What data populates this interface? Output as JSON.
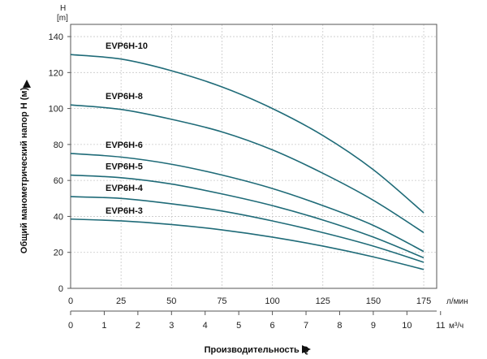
{
  "chart_data": {
    "type": "line",
    "y_axis": {
      "symbol": "H",
      "unit": "[m]",
      "label": "Общий манометрический напор H (м)",
      "ticks": [
        "0",
        "20",
        "40",
        "60",
        "80",
        "100",
        "120",
        "140"
      ],
      "ylim": [
        0,
        145
      ]
    },
    "x_axis_primary": {
      "unit": "л/мин",
      "ticks": [
        "0",
        "25",
        "50",
        "75",
        "100",
        "125",
        "150",
        "175"
      ],
      "xlim": [
        0,
        183
      ]
    },
    "x_axis_secondary": {
      "unit": "м³/ч",
      "ticks": [
        "0",
        "1",
        "2",
        "3",
        "4",
        "5",
        "6",
        "7",
        "8",
        "9",
        "10",
        "11"
      ]
    },
    "xlabel": "Производительность Q",
    "grid": true,
    "line_color": "#1f6b78",
    "series": [
      {
        "name": "EVP6H-10",
        "x": [
          0,
          25,
          50,
          75,
          100,
          125,
          150,
          175
        ],
        "y": [
          130,
          127.5,
          121,
          112,
          100,
          85,
          66,
          42
        ]
      },
      {
        "name": "EVP6H-8",
        "x": [
          0,
          25,
          50,
          75,
          100,
          125,
          150,
          175
        ],
        "y": [
          102,
          99.5,
          94,
          87,
          77,
          64,
          49,
          31
        ]
      },
      {
        "name": "EVP6H-6",
        "x": [
          0,
          25,
          50,
          75,
          100,
          125,
          150,
          175
        ],
        "y": [
          75,
          73,
          69,
          63,
          55.5,
          46,
          35,
          20.5
        ]
      },
      {
        "name": "EVP6H-5",
        "x": [
          0,
          25,
          50,
          75,
          100,
          125,
          150,
          175
        ],
        "y": [
          63,
          61.5,
          58,
          52.5,
          46,
          38,
          28.5,
          17
        ]
      },
      {
        "name": "EVP6H-4",
        "x": [
          0,
          25,
          50,
          75,
          100,
          125,
          150,
          175
        ],
        "y": [
          51,
          50,
          47,
          43,
          37.5,
          31,
          23.5,
          14.5
        ]
      },
      {
        "name": "EVP6H-3",
        "x": [
          0,
          25,
          50,
          75,
          100,
          125,
          150,
          175
        ],
        "y": [
          38.5,
          37.5,
          35.5,
          32.5,
          28.5,
          23.5,
          17.5,
          10.5
        ]
      }
    ]
  }
}
